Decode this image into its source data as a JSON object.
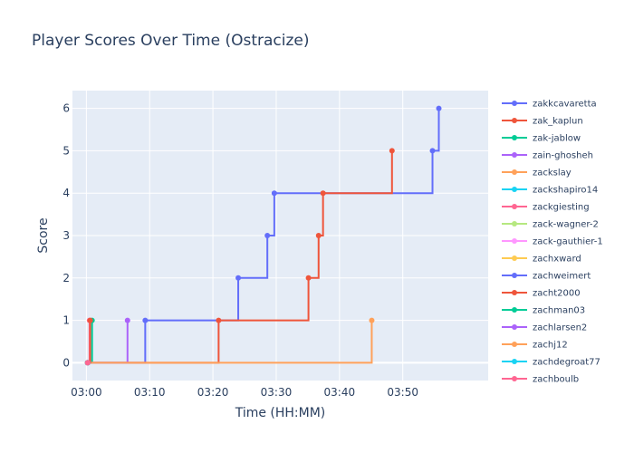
{
  "chart_data": {
    "type": "line",
    "line_shape": "step",
    "title": "Player Scores Over Time (Ostracize)",
    "xlabel": "Time (HH:MM)",
    "ylabel": "Score",
    "x_unit": "minutes after 03:00",
    "xlim": [
      -2.2,
      63.5
    ],
    "ylim": [
      -0.42,
      6.42
    ],
    "x_ticks": [
      {
        "v": 0,
        "label": "03:00"
      },
      {
        "v": 10,
        "label": "03:10"
      },
      {
        "v": 20,
        "label": "03:20"
      },
      {
        "v": 30,
        "label": "03:30"
      },
      {
        "v": 40,
        "label": "03:40"
      },
      {
        "v": 50,
        "label": "03:50"
      }
    ],
    "y_ticks": [
      {
        "v": 0,
        "label": "0"
      },
      {
        "v": 1,
        "label": "1"
      },
      {
        "v": 2,
        "label": "2"
      },
      {
        "v": 3,
        "label": "3"
      },
      {
        "v": 4,
        "label": "4"
      },
      {
        "v": 5,
        "label": "5"
      },
      {
        "v": 6,
        "label": "6"
      }
    ],
    "grid": true,
    "legend_position": "right",
    "series": [
      {
        "name": "zakkcavaretta",
        "color": "#636efa",
        "x": [
          0.2,
          9.3,
          24.0,
          28.6,
          29.7,
          54.7,
          55.7
        ],
        "y": [
          0,
          1,
          2,
          3,
          4,
          5,
          6
        ]
      },
      {
        "name": "zak_kaplun",
        "color": "#EF553B",
        "x": [
          0.2,
          20.9,
          35.1,
          36.7,
          37.4,
          48.3
        ],
        "y": [
          0,
          1,
          2,
          3,
          4,
          5
        ]
      },
      {
        "name": "zak-jablow",
        "color": "#00cc96",
        "x": [
          0.2,
          0.9
        ],
        "y": [
          0,
          1
        ]
      },
      {
        "name": "zain-ghosheh",
        "color": "#ab63fa",
        "x": [
          0.2,
          6.5
        ],
        "y": [
          0,
          1
        ]
      },
      {
        "name": "zackslay",
        "color": "#FFA15A",
        "x": [
          0.2,
          45.1
        ],
        "y": [
          0,
          1
        ]
      },
      {
        "name": "zackshapiro14",
        "color": "#19d3f3",
        "x": [
          0.2
        ],
        "y": [
          0
        ]
      },
      {
        "name": "zackgiesting",
        "color": "#FF6692",
        "x": [
          0.2,
          0.5
        ],
        "y": [
          0,
          1
        ]
      },
      {
        "name": "zack-wagner-2",
        "color": "#B6E880",
        "x": [
          0.2
        ],
        "y": [
          0
        ]
      },
      {
        "name": "zack-gauthier-1",
        "color": "#FF97FF",
        "x": [
          0.2
        ],
        "y": [
          0
        ]
      },
      {
        "name": "zachxward",
        "color": "#FECB52",
        "x": [
          0.2
        ],
        "y": [
          0
        ]
      },
      {
        "name": "zachweimert",
        "color": "#636efa",
        "x": [
          0.2
        ],
        "y": [
          0
        ]
      },
      {
        "name": "zacht2000",
        "color": "#EF553B",
        "x": [
          0.2,
          0.6
        ],
        "y": [
          0,
          1
        ]
      },
      {
        "name": "zachman03",
        "color": "#00cc96",
        "x": [
          0.2
        ],
        "y": [
          0
        ]
      },
      {
        "name": "zachlarsen2",
        "color": "#ab63fa",
        "x": [
          0.2
        ],
        "y": [
          0
        ]
      },
      {
        "name": "zachj12",
        "color": "#FFA15A",
        "x": [
          0.2
        ],
        "y": [
          0
        ]
      },
      {
        "name": "zachdegroat77",
        "color": "#19d3f3",
        "x": [
          0.2
        ],
        "y": [
          0
        ]
      },
      {
        "name": "zachboulb",
        "color": "#FF6692",
        "x": [
          0.2
        ],
        "y": [
          0
        ]
      }
    ]
  }
}
